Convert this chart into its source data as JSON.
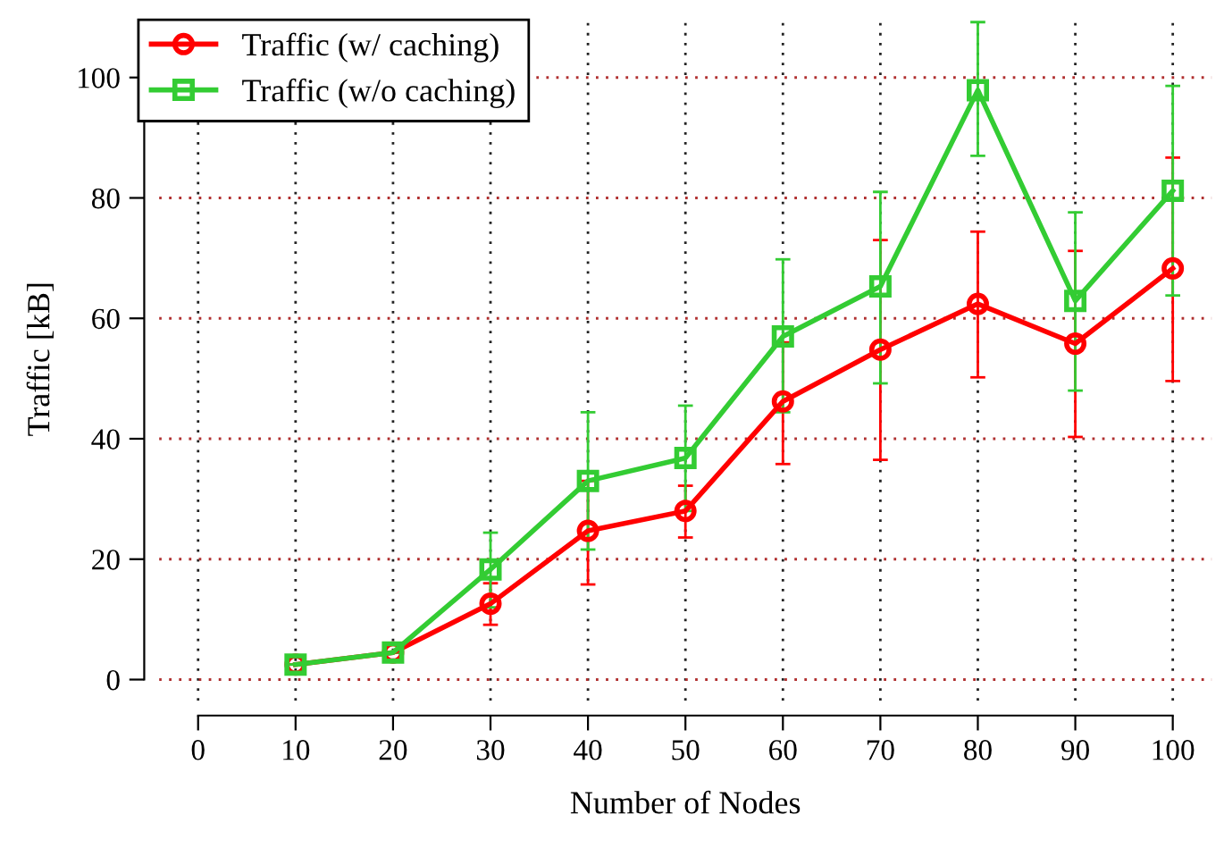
{
  "chart_data": {
    "type": "line",
    "xlabel": "Number of Nodes",
    "ylabel": "Traffic [kB]",
    "x": [
      10,
      20,
      30,
      40,
      50,
      60,
      70,
      80,
      90,
      100
    ],
    "xlim": [
      -4,
      104
    ],
    "ylim": [
      -3.5,
      110
    ],
    "xticks": [
      0,
      10,
      20,
      30,
      40,
      50,
      60,
      70,
      80,
      90,
      100
    ],
    "yticks": [
      0,
      20,
      40,
      60,
      80,
      100
    ],
    "grid": true,
    "legend": "top left",
    "line_style": "solid",
    "series": [
      {
        "name": "Traffic (w/ caching)",
        "color": "#ff0000",
        "marker": "circle",
        "values": [
          2.5,
          4.5,
          12.6,
          24.7,
          28,
          46.2,
          54.8,
          62.4,
          55.8,
          68.3
        ],
        "errors": [
          null,
          null,
          [
            9.1,
            16
          ],
          [
            15.8,
            33
          ],
          [
            23.6,
            32.2
          ],
          [
            35.8,
            56
          ],
          [
            36.5,
            73
          ],
          [
            50.2,
            74.4
          ],
          [
            40.3,
            71.2
          ],
          [
            49.6,
            86.7
          ]
        ]
      },
      {
        "name": "Traffic (w/o caching)",
        "color": "#33cc33",
        "marker": "square",
        "values": [
          2.5,
          4.5,
          18.3,
          33,
          36.8,
          57,
          65.3,
          97.9,
          62.9,
          81.2
        ],
        "errors": [
          null,
          null,
          [
            12,
            24.4
          ],
          [
            21.6,
            44.4
          ],
          [
            28,
            45.5
          ],
          [
            44.4,
            69.8
          ],
          [
            49.2,
            81
          ],
          [
            87,
            109.2
          ],
          [
            48,
            77.6
          ],
          [
            63.8,
            98.6
          ]
        ]
      }
    ]
  }
}
